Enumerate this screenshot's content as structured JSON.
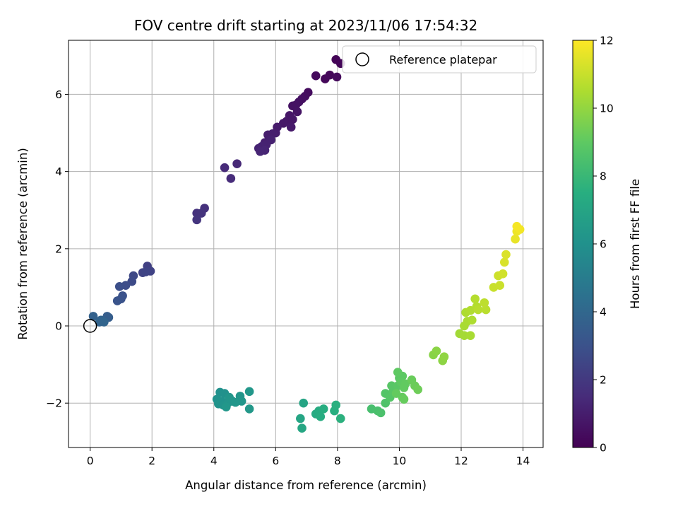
{
  "chart_data": {
    "type": "scatter",
    "title": "FOV centre drift starting at 2023/11/06 17:54:32",
    "xlabel": "Angular distance from reference (arcmin)",
    "ylabel": "Rotation from reference (arcmin)",
    "xlim": [
      -0.7,
      14.65
    ],
    "ylim": [
      -3.15,
      7.4
    ],
    "xticks": [
      0,
      2,
      4,
      6,
      8,
      10,
      12,
      14
    ],
    "yticks": [
      -2,
      0,
      2,
      4,
      6
    ],
    "grid": true,
    "legend": {
      "position": "top-right",
      "entries": [
        {
          "label": "Reference platepar",
          "marker": "hollow-circle"
        }
      ]
    },
    "reference_point": {
      "x": 0,
      "y": 0
    },
    "colorbar": {
      "label": "Hours from first FF file",
      "range": [
        0,
        12
      ],
      "ticks": [
        0,
        2,
        4,
        6,
        8,
        10,
        12
      ],
      "colormap": "viridis"
    },
    "points": [
      {
        "x": 7.95,
        "y": 6.9,
        "c": 0.1
      },
      {
        "x": 8.1,
        "y": 6.8,
        "c": 0.15
      },
      {
        "x": 7.75,
        "y": 6.5,
        "c": 0.2
      },
      {
        "x": 7.6,
        "y": 6.4,
        "c": 0.25
      },
      {
        "x": 7.3,
        "y": 6.48,
        "c": 0.3
      },
      {
        "x": 7.98,
        "y": 6.45,
        "c": 0.3
      },
      {
        "x": 7.05,
        "y": 6.05,
        "c": 0.4
      },
      {
        "x": 6.95,
        "y": 5.95,
        "c": 0.45
      },
      {
        "x": 6.85,
        "y": 5.88,
        "c": 0.5
      },
      {
        "x": 6.75,
        "y": 5.8,
        "c": 0.55
      },
      {
        "x": 6.65,
        "y": 5.72,
        "c": 0.6
      },
      {
        "x": 6.55,
        "y": 5.7,
        "c": 0.6
      },
      {
        "x": 6.7,
        "y": 5.55,
        "c": 0.65
      },
      {
        "x": 6.45,
        "y": 5.45,
        "c": 0.7
      },
      {
        "x": 6.35,
        "y": 5.3,
        "c": 0.75
      },
      {
        "x": 6.55,
        "y": 5.35,
        "c": 0.75
      },
      {
        "x": 6.25,
        "y": 5.25,
        "c": 0.8
      },
      {
        "x": 6.5,
        "y": 5.15,
        "c": 0.85
      },
      {
        "x": 6.05,
        "y": 5.15,
        "c": 0.9
      },
      {
        "x": 6.0,
        "y": 5.0,
        "c": 0.95
      },
      {
        "x": 5.9,
        "y": 4.98,
        "c": 1.0
      },
      {
        "x": 5.75,
        "y": 4.95,
        "c": 1.0
      },
      {
        "x": 5.65,
        "y": 4.75,
        "c": 1.05
      },
      {
        "x": 5.85,
        "y": 4.82,
        "c": 1.1
      },
      {
        "x": 5.7,
        "y": 4.7,
        "c": 1.15
      },
      {
        "x": 5.55,
        "y": 4.65,
        "c": 1.2
      },
      {
        "x": 5.45,
        "y": 4.6,
        "c": 1.2
      },
      {
        "x": 5.65,
        "y": 4.55,
        "c": 1.25
      },
      {
        "x": 5.5,
        "y": 4.52,
        "c": 1.3
      },
      {
        "x": 4.75,
        "y": 4.2,
        "c": 1.4
      },
      {
        "x": 4.35,
        "y": 4.1,
        "c": 1.45
      },
      {
        "x": 4.55,
        "y": 3.82,
        "c": 1.5
      },
      {
        "x": 3.7,
        "y": 3.05,
        "c": 1.7
      },
      {
        "x": 3.45,
        "y": 2.92,
        "c": 1.75
      },
      {
        "x": 3.6,
        "y": 2.92,
        "c": 1.8
      },
      {
        "x": 3.45,
        "y": 2.75,
        "c": 1.85
      },
      {
        "x": 1.85,
        "y": 1.55,
        "c": 2.3
      },
      {
        "x": 1.95,
        "y": 1.42,
        "c": 2.35
      },
      {
        "x": 1.7,
        "y": 1.38,
        "c": 2.4
      },
      {
        "x": 1.8,
        "y": 1.4,
        "c": 2.45
      },
      {
        "x": 1.4,
        "y": 1.3,
        "c": 2.6
      },
      {
        "x": 1.35,
        "y": 1.15,
        "c": 2.7
      },
      {
        "x": 1.15,
        "y": 1.05,
        "c": 2.8
      },
      {
        "x": 0.95,
        "y": 1.02,
        "c": 2.9
      },
      {
        "x": 1.05,
        "y": 0.78,
        "c": 3.0
      },
      {
        "x": 1.0,
        "y": 0.7,
        "c": 3.05
      },
      {
        "x": 0.88,
        "y": 0.65,
        "c": 3.1
      },
      {
        "x": 0.6,
        "y": 0.22,
        "c": 3.5
      },
      {
        "x": 0.55,
        "y": 0.25,
        "c": 3.55
      },
      {
        "x": 0.1,
        "y": 0.25,
        "c": 3.7
      },
      {
        "x": 0.35,
        "y": 0.15,
        "c": 3.8
      },
      {
        "x": 0.3,
        "y": 0.1,
        "c": 3.85
      },
      {
        "x": 0.45,
        "y": 0.1,
        "c": 3.9
      },
      {
        "x": 4.2,
        "y": -1.72,
        "c": 6.0
      },
      {
        "x": 4.35,
        "y": -1.75,
        "c": 6.0
      },
      {
        "x": 4.1,
        "y": -1.9,
        "c": 6.05
      },
      {
        "x": 4.25,
        "y": -1.95,
        "c": 6.05
      },
      {
        "x": 4.15,
        "y": -2.02,
        "c": 6.1
      },
      {
        "x": 4.3,
        "y": -2.05,
        "c": 6.1
      },
      {
        "x": 4.45,
        "y": -2.0,
        "c": 6.15
      },
      {
        "x": 4.6,
        "y": -1.95,
        "c": 6.15
      },
      {
        "x": 4.5,
        "y": -1.85,
        "c": 6.2
      },
      {
        "x": 4.85,
        "y": -1.82,
        "c": 6.2
      },
      {
        "x": 4.7,
        "y": -1.98,
        "c": 6.25
      },
      {
        "x": 4.9,
        "y": -1.95,
        "c": 6.25
      },
      {
        "x": 5.15,
        "y": -1.7,
        "c": 6.3
      },
      {
        "x": 5.15,
        "y": -2.15,
        "c": 6.35
      },
      {
        "x": 4.4,
        "y": -2.1,
        "c": 6.3
      },
      {
        "x": 6.9,
        "y": -2.0,
        "c": 7.0
      },
      {
        "x": 6.8,
        "y": -2.4,
        "c": 7.05
      },
      {
        "x": 6.85,
        "y": -2.65,
        "c": 7.1
      },
      {
        "x": 7.3,
        "y": -2.28,
        "c": 7.3
      },
      {
        "x": 7.4,
        "y": -2.2,
        "c": 7.35
      },
      {
        "x": 7.45,
        "y": -2.35,
        "c": 7.4
      },
      {
        "x": 7.55,
        "y": -2.15,
        "c": 7.45
      },
      {
        "x": 7.9,
        "y": -2.2,
        "c": 7.5
      },
      {
        "x": 7.95,
        "y": -2.05,
        "c": 7.55
      },
      {
        "x": 8.1,
        "y": -2.4,
        "c": 7.6
      },
      {
        "x": 9.1,
        "y": -2.15,
        "c": 8.4
      },
      {
        "x": 9.3,
        "y": -2.2,
        "c": 8.45
      },
      {
        "x": 9.4,
        "y": -2.25,
        "c": 8.5
      },
      {
        "x": 9.55,
        "y": -2.0,
        "c": 8.6
      },
      {
        "x": 9.55,
        "y": -1.75,
        "c": 8.7
      },
      {
        "x": 9.7,
        "y": -1.85,
        "c": 8.75
      },
      {
        "x": 9.8,
        "y": -1.7,
        "c": 8.8
      },
      {
        "x": 9.75,
        "y": -1.55,
        "c": 8.8
      },
      {
        "x": 9.95,
        "y": -1.55,
        "c": 8.85
      },
      {
        "x": 10.0,
        "y": -1.35,
        "c": 8.9
      },
      {
        "x": 10.1,
        "y": -1.3,
        "c": 8.95
      },
      {
        "x": 9.95,
        "y": -1.2,
        "c": 9.0
      },
      {
        "x": 10.05,
        "y": -1.45,
        "c": 9.0
      },
      {
        "x": 10.15,
        "y": -1.6,
        "c": 9.05
      },
      {
        "x": 10.2,
        "y": -1.5,
        "c": 9.05
      },
      {
        "x": 9.9,
        "y": -1.75,
        "c": 9.1
      },
      {
        "x": 10.1,
        "y": -1.85,
        "c": 9.1
      },
      {
        "x": 10.15,
        "y": -1.9,
        "c": 9.15
      },
      {
        "x": 10.4,
        "y": -1.4,
        "c": 9.2
      },
      {
        "x": 10.5,
        "y": -1.55,
        "c": 9.25
      },
      {
        "x": 10.6,
        "y": -1.65,
        "c": 9.3
      },
      {
        "x": 11.1,
        "y": -0.75,
        "c": 9.8
      },
      {
        "x": 11.2,
        "y": -0.65,
        "c": 9.85
      },
      {
        "x": 11.4,
        "y": -0.9,
        "c": 9.9
      },
      {
        "x": 11.45,
        "y": -0.8,
        "c": 9.95
      },
      {
        "x": 11.95,
        "y": -0.2,
        "c": 10.3
      },
      {
        "x": 12.1,
        "y": -0.25,
        "c": 10.35
      },
      {
        "x": 12.3,
        "y": -0.25,
        "c": 10.4
      },
      {
        "x": 12.1,
        "y": 0.0,
        "c": 10.4
      },
      {
        "x": 12.2,
        "y": 0.12,
        "c": 10.45
      },
      {
        "x": 12.35,
        "y": 0.15,
        "c": 10.5
      },
      {
        "x": 12.15,
        "y": 0.35,
        "c": 10.5
      },
      {
        "x": 12.3,
        "y": 0.4,
        "c": 10.55
      },
      {
        "x": 12.5,
        "y": 0.5,
        "c": 10.6
      },
      {
        "x": 12.45,
        "y": 0.7,
        "c": 10.65
      },
      {
        "x": 12.55,
        "y": 0.42,
        "c": 10.7
      },
      {
        "x": 12.8,
        "y": 0.42,
        "c": 10.75
      },
      {
        "x": 12.75,
        "y": 0.6,
        "c": 10.8
      },
      {
        "x": 13.05,
        "y": 1.0,
        "c": 11.0
      },
      {
        "x": 13.25,
        "y": 1.05,
        "c": 11.05
      },
      {
        "x": 13.2,
        "y": 1.3,
        "c": 11.1
      },
      {
        "x": 13.35,
        "y": 1.35,
        "c": 11.15
      },
      {
        "x": 13.4,
        "y": 1.65,
        "c": 11.3
      },
      {
        "x": 13.45,
        "y": 1.85,
        "c": 11.35
      },
      {
        "x": 13.75,
        "y": 2.25,
        "c": 11.6
      },
      {
        "x": 13.8,
        "y": 2.45,
        "c": 11.7
      },
      {
        "x": 13.9,
        "y": 2.5,
        "c": 11.8
      },
      {
        "x": 13.8,
        "y": 2.58,
        "c": 11.85
      }
    ]
  }
}
